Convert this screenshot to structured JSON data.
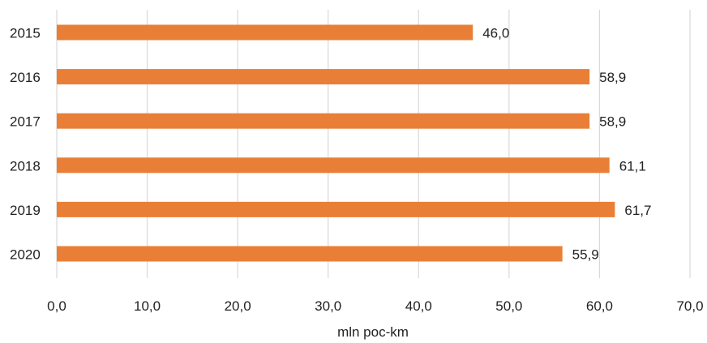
{
  "chart_data": {
    "type": "bar",
    "orientation": "horizontal",
    "categories": [
      "2015",
      "2016",
      "2017",
      "2018",
      "2019",
      "2020"
    ],
    "values": [
      46.0,
      58.9,
      58.9,
      61.1,
      61.7,
      55.9
    ],
    "value_labels": [
      "46,0",
      "58,9",
      "58,9",
      "61,1",
      "61,7",
      "55,9"
    ],
    "xlim": [
      0,
      70
    ],
    "x_ticks": [
      0,
      10,
      20,
      30,
      40,
      50,
      60,
      70
    ],
    "x_tick_labels": [
      "0,0",
      "10,0",
      "20,0",
      "30,0",
      "40,0",
      "50,0",
      "60,0",
      "70,0"
    ],
    "xlabel": "mln poc-km",
    "ylabel": "",
    "title": "",
    "grid": "vertical",
    "legend": "none",
    "colors": {
      "bar": "#E97F37",
      "grid": "#D9D9D9",
      "text": "#222222"
    }
  }
}
